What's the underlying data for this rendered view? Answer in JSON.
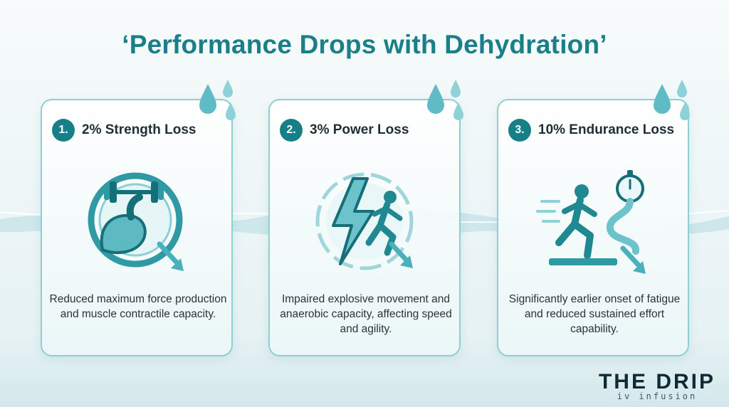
{
  "title": "‘Performance Drops with Dehydration’",
  "cards": [
    {
      "number": "1.",
      "title": "2% Strength Loss",
      "icon": "flexed-arm-dumbbell-icon",
      "description": "Reduced maximum force production and muscle contractile capacity."
    },
    {
      "number": "2.",
      "title": "3% Power Loss",
      "icon": "lightning-sprinter-icon",
      "description": "Impaired explosive movement and anaerobic capacity, affecting speed and agility."
    },
    {
      "number": "3.",
      "title": "10% Endurance Loss",
      "icon": "runner-stopwatch-icon",
      "description": "Significantly earlier onset of fatigue and reduced sustained effort capability."
    }
  ],
  "logo": {
    "name": "THE DRIP",
    "tagline": "iv infusion"
  },
  "colors": {
    "accent": "#1a7f88",
    "badge": "#177f87",
    "card_border": "#8fcfd4",
    "drop": "#5fbcc6"
  }
}
